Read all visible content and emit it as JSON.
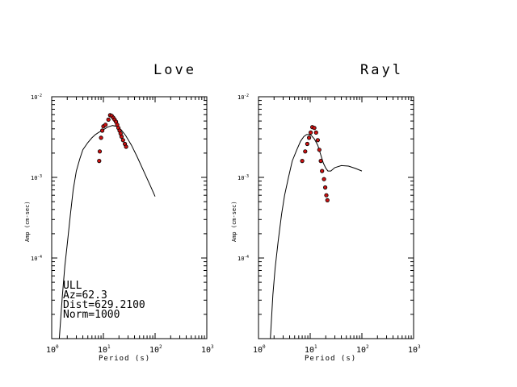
{
  "chart_data": [
    {
      "type": "line",
      "title": "Love",
      "xlabel": "Period (s)",
      "ylabel": "Amp (cm-sec)",
      "x_scale": "log",
      "y_scale": "log",
      "xlim": [
        1,
        1000
      ],
      "ylim": [
        1e-05,
        0.01
      ],
      "x_ticks": [
        "10^0",
        "10^1",
        "10^2",
        "10^3"
      ],
      "y_ticks": [
        "10^-2",
        "10^-3",
        "10^-4"
      ],
      "annotation": [
        "ULL",
        "Az=62.3",
        "Dist=629.2100",
        "Norm=1000"
      ],
      "series": [
        {
          "style": "line",
          "color": "#000000",
          "x": [
            1.4,
            1.6,
            1.8,
            2.0,
            2.3,
            2.6,
            3.0,
            3.5,
            4.0,
            5.0,
            6.0,
            7.0,
            8.0,
            10.0,
            12.0,
            15.0,
            18.0,
            22.0,
            27.0,
            35.0,
            45.0,
            60.0,
            80.0,
            100.0
          ],
          "y": [
            1e-05,
            3.3e-05,
            8e-05,
            0.00015,
            0.00035,
            0.0007,
            0.0012,
            0.0017,
            0.0022,
            0.0027,
            0.0031,
            0.0034,
            0.0036,
            0.0039,
            0.0042,
            0.0044,
            0.0043,
            0.0039,
            0.0033,
            0.0025,
            0.0018,
            0.0012,
            0.0008,
            0.00058
          ]
        },
        {
          "style": "points",
          "color": "#cc1111",
          "x": [
            8.3,
            8.5,
            9.0,
            9.5,
            10.0,
            11.0,
            12.5,
            13.5,
            14.5,
            15.5,
            16.5,
            17.5,
            18.5,
            19.5,
            20.5,
            21.5,
            22.5,
            24.0,
            26.0,
            27.5
          ],
          "y": [
            0.0016,
            0.0021,
            0.0031,
            0.0038,
            0.0043,
            0.0045,
            0.0052,
            0.0059,
            0.0058,
            0.0055,
            0.0052,
            0.0049,
            0.0045,
            0.0041,
            0.0038,
            0.0035,
            0.0032,
            0.0029,
            0.0026,
            0.0024
          ]
        }
      ]
    },
    {
      "type": "line",
      "title": "Rayl",
      "xlabel": "Period (s)",
      "ylabel": "Amp (cm-sec)",
      "x_scale": "log",
      "y_scale": "log",
      "xlim": [
        1,
        1000
      ],
      "ylim": [
        1e-05,
        0.01
      ],
      "x_ticks": [
        "10^0",
        "10^1",
        "10^2",
        "10^3"
      ],
      "y_ticks": [
        "10^-2",
        "10^-3",
        "10^-4"
      ],
      "series": [
        {
          "style": "line",
          "color": "#000000",
          "x": [
            1.7,
            1.9,
            2.1,
            2.4,
            2.8,
            3.2,
            3.8,
            4.5,
            5.5,
            6.5,
            7.5,
            8.5,
            9.5,
            10.5,
            12.0,
            14.0,
            16.0,
            18.0,
            20.0,
            22.0,
            25.0,
            30.0,
            40.0,
            55.0,
            75.0,
            100.0
          ],
          "y": [
            1e-05,
            3.5e-05,
            7.5e-05,
            0.00016,
            0.00035,
            0.0006,
            0.001,
            0.0016,
            0.0022,
            0.0028,
            0.0032,
            0.0034,
            0.0034,
            0.0033,
            0.003,
            0.0025,
            0.0019,
            0.0015,
            0.0013,
            0.0012,
            0.0012,
            0.00132,
            0.0014,
            0.00138,
            0.00129,
            0.0012
          ]
        },
        {
          "style": "points",
          "color": "#cc1111",
          "x": [
            7.0,
            8.0,
            8.8,
            9.5,
            10.2,
            11.0,
            12.0,
            13.0,
            14.0,
            15.0,
            16.0,
            17.0,
            18.5,
            19.5,
            20.5,
            21.5
          ],
          "y": [
            0.0016,
            0.0021,
            0.0026,
            0.0031,
            0.0036,
            0.0042,
            0.0041,
            0.0036,
            0.0029,
            0.0022,
            0.0016,
            0.0012,
            0.00095,
            0.00075,
            0.0006,
            0.00052
          ]
        }
      ]
    }
  ]
}
